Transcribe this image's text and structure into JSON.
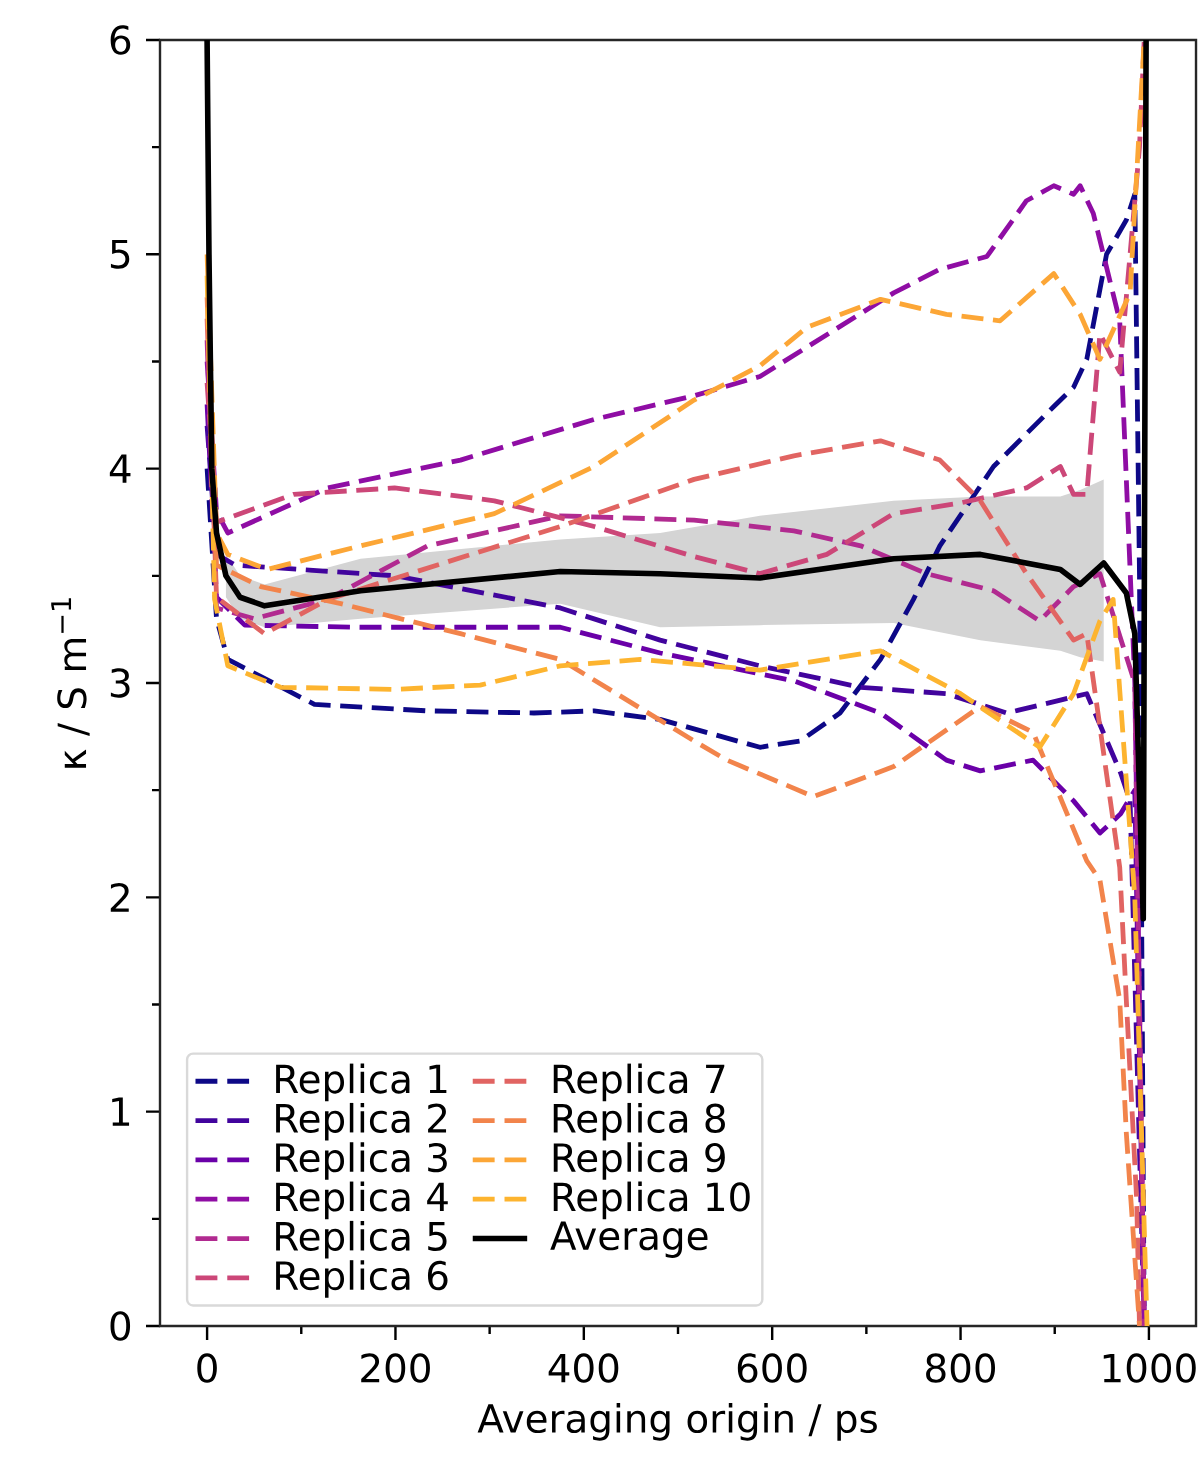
{
  "chart_data": {
    "type": "line",
    "xlabel": "Averaging origin / ps",
    "ylabel": "κ / S m$^{−1}$",
    "xlim": [
      -50,
      1050
    ],
    "ylim": [
      0,
      6
    ],
    "xticks": [
      0,
      200,
      400,
      600,
      800,
      1000
    ],
    "yticks": [
      0,
      1,
      2,
      3,
      4,
      5,
      6
    ],
    "legend": "bottom left",
    "grid": false,
    "series": [
      {
        "name": "Replica 1",
        "color": "#0d0887",
        "line_style": "dashed",
        "x": [
          0,
          10,
          22,
          114,
          234,
          347,
          411,
          481,
          587,
          630,
          672,
          715,
          750,
          778,
          835,
          899,
          920,
          934,
          955,
          976,
          985,
          990,
          995
        ],
        "values": [
          4.0,
          3.3,
          3.11,
          2.9,
          2.87,
          2.86,
          2.87,
          2.83,
          2.7,
          2.73,
          2.86,
          3.11,
          3.39,
          3.64,
          4.01,
          4.29,
          4.38,
          4.51,
          5.0,
          5.16,
          5.28,
          3.5,
          0
        ]
      },
      {
        "name": "Replica 2",
        "color": "#41049d",
        "line_style": "dashed",
        "x": [
          0,
          10,
          30,
          200,
          375,
          481,
          587,
          694,
          785,
          849,
          906,
          934,
          970,
          980,
          995
        ],
        "values": [
          4.2,
          3.6,
          3.55,
          3.5,
          3.35,
          3.2,
          3.08,
          2.98,
          2.95,
          2.86,
          2.92,
          2.95,
          2.58,
          2.45,
          0
        ]
      },
      {
        "name": "Replica 3",
        "color": "#6a00a8",
        "line_style": "dashed",
        "x": [
          0,
          10,
          40,
          163,
          375,
          481,
          623,
          715,
          785,
          821,
          877,
          920,
          948,
          970,
          985,
          995
        ],
        "values": [
          4.3,
          3.4,
          3.27,
          3.26,
          3.26,
          3.14,
          3.01,
          2.86,
          2.64,
          2.59,
          2.64,
          2.45,
          2.3,
          2.39,
          2.5,
          0
        ]
      },
      {
        "name": "Replica 4",
        "color": "#8f0da4",
        "line_style": "dashed",
        "x": [
          0,
          10,
          22,
          128,
          269,
          411,
          517,
          587,
          729,
          778,
          828,
          870,
          899,
          920,
          927,
          941,
          955,
          969,
          985,
          995
        ],
        "values": [
          4.5,
          3.8,
          3.7,
          3.91,
          4.04,
          4.23,
          4.34,
          4.43,
          4.82,
          4.93,
          4.99,
          5.25,
          5.32,
          5.28,
          5.32,
          5.19,
          4.94,
          4.69,
          3.0,
          0
        ]
      },
      {
        "name": "Replica 5",
        "color": "#b12a90",
        "line_style": "dashed",
        "x": [
          0,
          10,
          50,
          128,
          234,
          375,
          517,
          623,
          694,
          764,
          835,
          884,
          920,
          948,
          985,
          995
        ],
        "values": [
          4.6,
          3.35,
          3.3,
          3.39,
          3.64,
          3.78,
          3.76,
          3.71,
          3.64,
          3.51,
          3.43,
          3.29,
          3.45,
          3.51,
          3.0,
          0
        ]
      },
      {
        "name": "Replica 6",
        "color": "#cc4778",
        "line_style": "dashed",
        "x": [
          0,
          10,
          92,
          199,
          305,
          411,
          517,
          587,
          658,
          729,
          800,
          870,
          906,
          920,
          934,
          948,
          969,
          990,
          995
        ],
        "values": [
          4.4,
          3.75,
          3.88,
          3.91,
          3.85,
          3.73,
          3.59,
          3.51,
          3.6,
          3.79,
          3.84,
          3.91,
          4.01,
          3.88,
          3.88,
          4.63,
          4.45,
          5.5,
          6
        ]
      },
      {
        "name": "Replica 7",
        "color": "#e16462",
        "line_style": "dashed",
        "x": [
          0,
          10,
          61,
          128,
          375,
          517,
          623,
          715,
          778,
          821,
          870,
          920,
          934,
          969,
          976,
          987,
          990
        ],
        "values": [
          4.7,
          3.4,
          3.23,
          3.39,
          3.73,
          3.95,
          4.06,
          4.13,
          4.04,
          3.85,
          3.51,
          3.2,
          3.23,
          2.14,
          1.52,
          0.59,
          0
        ]
      },
      {
        "name": "Replica 8",
        "color": "#f2844b",
        "line_style": "dashed",
        "x": [
          0,
          10,
          57,
          142,
          269,
          375,
          446,
          517,
          552,
          644,
          729,
          821,
          877,
          934,
          948,
          969,
          976,
          990
        ],
        "values": [
          4.8,
          3.55,
          3.45,
          3.37,
          3.23,
          3.11,
          2.92,
          2.73,
          2.64,
          2.47,
          2.61,
          2.89,
          2.77,
          2.17,
          2.08,
          1.52,
          0.9,
          0
        ]
      },
      {
        "name": "Replica 9",
        "color": "#fca636",
        "line_style": "dashed",
        "x": [
          0,
          10,
          22,
          64,
          163,
          305,
          411,
          517,
          587,
          637,
          715,
          785,
          842,
          899,
          927,
          948,
          980,
          995
        ],
        "values": [
          5.0,
          3.7,
          3.6,
          3.53,
          3.64,
          3.79,
          4.01,
          4.32,
          4.48,
          4.66,
          4.79,
          4.72,
          4.69,
          4.91,
          4.72,
          4.51,
          4.82,
          6
        ]
      },
      {
        "name": "Replica 10",
        "color": "#fdb42f",
        "line_style": "dashed",
        "x": [
          0,
          8,
          22,
          78,
          199,
          290,
          375,
          460,
          587,
          715,
          800,
          884,
          920,
          948,
          962,
          985,
          998
        ],
        "values": [
          4.9,
          3.39,
          3.08,
          2.98,
          2.97,
          2.99,
          3.08,
          3.11,
          3.06,
          3.15,
          2.95,
          2.7,
          2.95,
          3.29,
          3.39,
          2.0,
          0
        ]
      },
      {
        "name": "Average",
        "color": "#000000",
        "line_style": "solid",
        "x": [
          0,
          2,
          5,
          10,
          20,
          35,
          61,
          163,
          375,
          481,
          587,
          729,
          821,
          906,
          927,
          952,
          976,
          985,
          994,
          997
        ],
        "values": [
          6,
          5,
          4.0,
          3.7,
          3.5,
          3.4,
          3.36,
          3.43,
          3.52,
          3.51,
          3.49,
          3.58,
          3.6,
          3.53,
          3.46,
          3.56,
          3.42,
          3.23,
          1.9,
          6
        ],
        "lower": [
          null,
          null,
          null,
          null,
          3.4,
          3.3,
          3.26,
          3.3,
          3.37,
          3.26,
          3.27,
          3.28,
          3.2,
          3.15,
          3.12,
          3.1,
          null,
          null,
          null,
          null
        ],
        "upper": [
          null,
          null,
          null,
          null,
          3.6,
          3.5,
          3.46,
          3.58,
          3.67,
          3.7,
          3.78,
          3.85,
          3.87,
          3.87,
          3.9,
          3.95,
          null,
          null,
          null,
          null
        ]
      }
    ]
  }
}
